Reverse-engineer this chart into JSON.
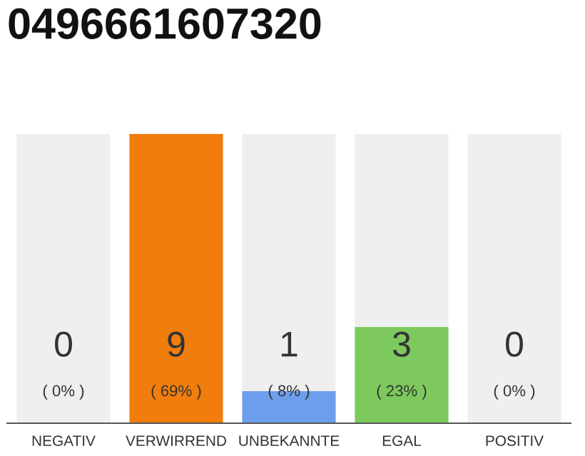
{
  "chart_data": {
    "type": "bar",
    "title": "0496661607320",
    "categories": [
      "NEGATIV",
      "VERWIRREND",
      "UNBEKANNTE",
      "EGAL",
      "POSITIV"
    ],
    "stacked": true,
    "series": [
      {
        "colors": [
          "#6d9eeb",
          "#f07d0c",
          "#6d9eeb",
          "#7dc95e",
          "#6d9eeb"
        ],
        "values": [
          0,
          9,
          1,
          3,
          0
        ],
        "value_labels": [
          null,
          "9",
          "1",
          "3",
          null
        ]
      },
      {
        "color": "#efefef",
        "values": [
          9,
          0,
          8,
          6,
          9
        ]
      }
    ],
    "annotations": [
      {
        "text": "0",
        "x": "NEGATIV",
        "y": 0
      },
      {
        "text": "0",
        "x": "POSITIV",
        "y": 0
      },
      {
        "text": "( 0% )",
        "x": "NEGATIV",
        "y": 0
      },
      {
        "text": "( 69% )",
        "x": "VERWIRREND",
        "y": 0
      },
      {
        "text": "( 8% )",
        "x": "UNBEKANNTE",
        "y": 0
      },
      {
        "text": "( 23% )",
        "x": "EGAL",
        "y": 0
      },
      {
        "text": "( 0% )",
        "x": "POSITIV",
        "y": 0
      }
    ],
    "ylim": [
      0,
      9
    ],
    "tick_labels": "x",
    "grid": false,
    "legend": false
  }
}
